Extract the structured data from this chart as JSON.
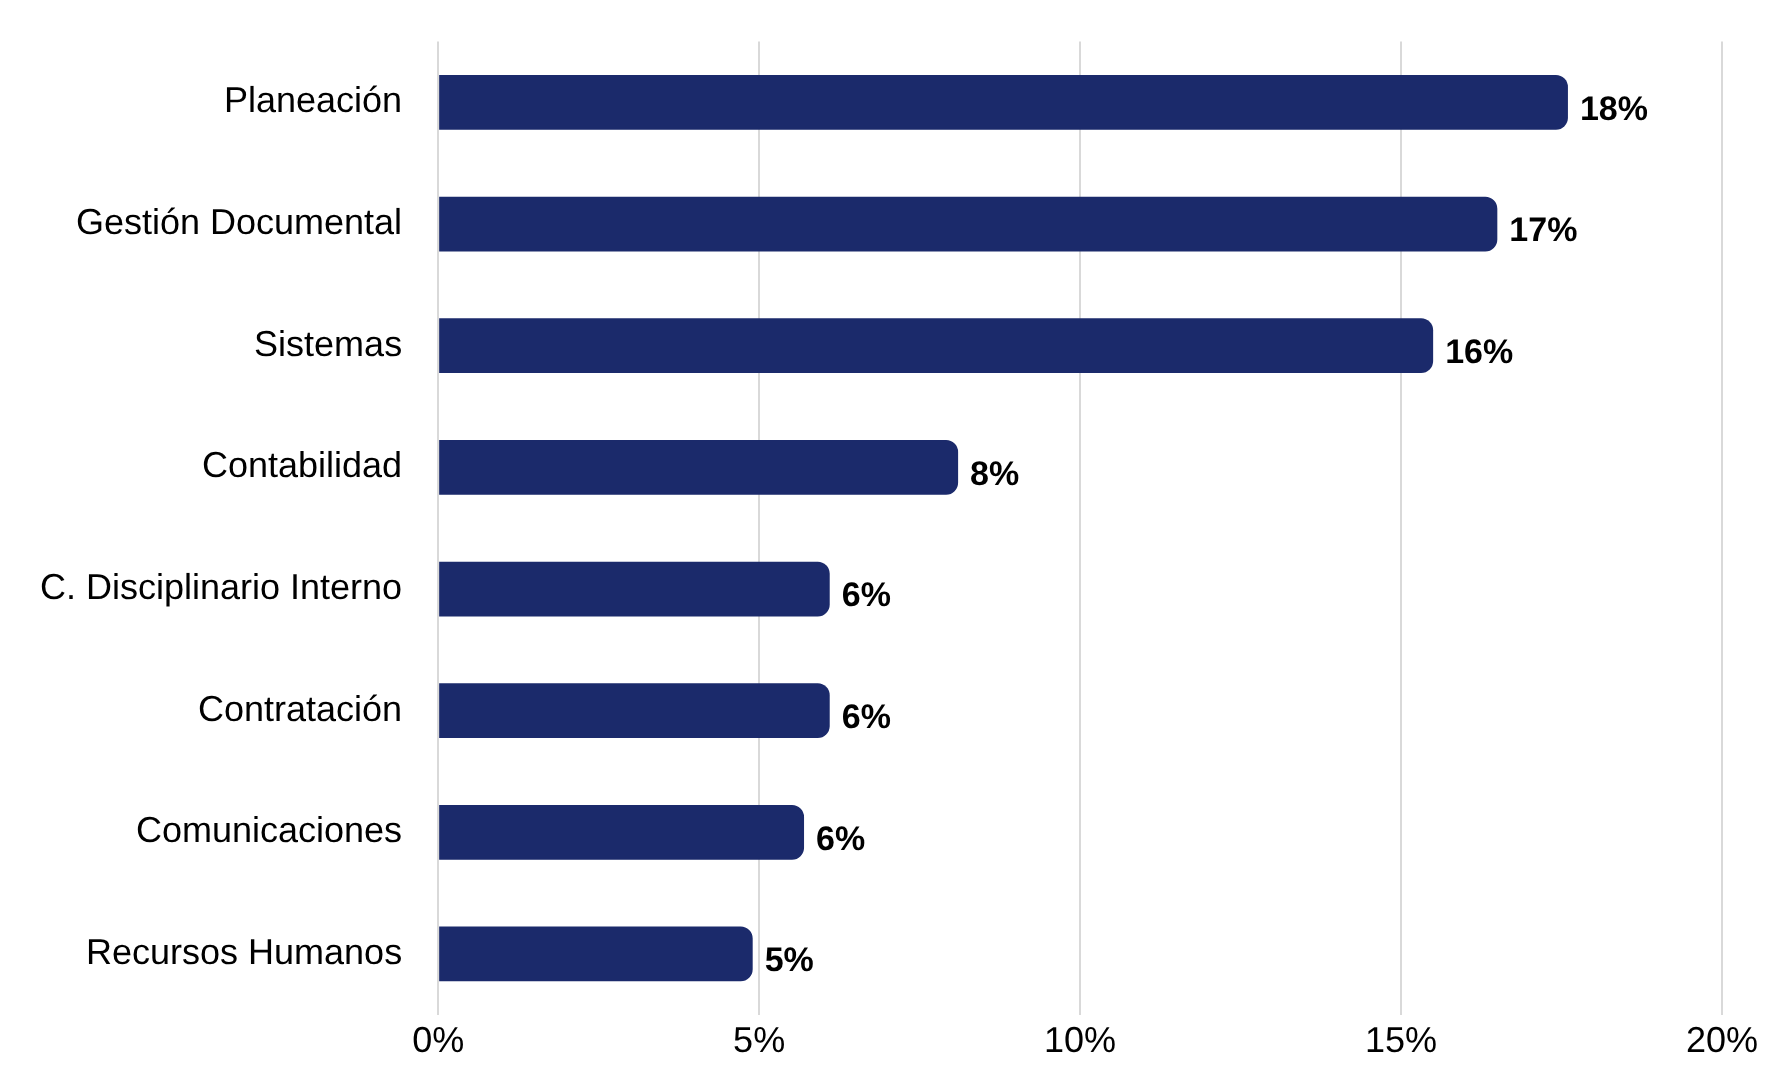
{
  "chart_data": {
    "type": "bar",
    "orientation": "horizontal",
    "categories": [
      "Planeación",
      "Gestión Documental",
      "Sistemas",
      "Contabilidad",
      "C. Disciplinario Interno",
      "Contratación",
      "Comunicaciones",
      "Recursos Humanos"
    ],
    "values": [
      17.6,
      16.5,
      15.5,
      8.1,
      6.1,
      6.1,
      5.7,
      4.9
    ],
    "value_labels": [
      "18%",
      "17%",
      "16%",
      "8%",
      "6%",
      "6%",
      "6%",
      "5%"
    ],
    "color": "#1b2a6b",
    "xlim": [
      0,
      20
    ],
    "xticks": [
      {
        "value": 0,
        "label": "0%"
      },
      {
        "value": 5,
        "label": "5%"
      },
      {
        "value": 10,
        "label": "10%"
      },
      {
        "value": 15,
        "label": "15%"
      },
      {
        "value": 20,
        "label": "20%"
      }
    ],
    "grid": "x",
    "legend": false
  }
}
